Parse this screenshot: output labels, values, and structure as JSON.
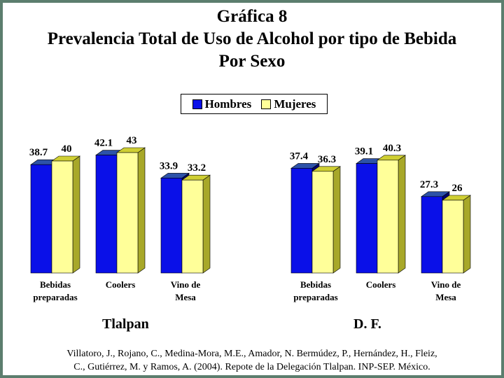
{
  "title": {
    "line1": "Gráfica 8",
    "line2": "Prevalencia Total de Uso de Alcohol por tipo de Bebida",
    "line3": "Por Sexo"
  },
  "legend": {
    "hombres": "Hombres",
    "mujeres": "Mujeres"
  },
  "colors": {
    "hombres_front": "#0a10e8",
    "hombres_top": "#2d52a8",
    "hombres_side": "#00006a",
    "mujeres_front": "#ffff99",
    "mujeres_top": "#cfcf33",
    "mujeres_side": "#a8a829",
    "frame": "#5c7e6e"
  },
  "chart_data": [
    {
      "type": "bar",
      "panel_label": "Tlalpan",
      "categories": [
        [
          "Bebidas",
          "preparadas"
        ],
        [
          "Coolers"
        ],
        [
          "Vino de",
          "Mesa"
        ]
      ],
      "series": [
        {
          "name": "Hombres",
          "values": [
            38.7,
            42.1,
            33.9
          ],
          "labels": [
            "38.7",
            "42.1",
            "33.9"
          ]
        },
        {
          "name": "Mujeres",
          "values": [
            40,
            43,
            33.2
          ],
          "labels": [
            "40",
            "43",
            "33.2"
          ]
        }
      ],
      "ylim": [
        0,
        50
      ]
    },
    {
      "type": "bar",
      "panel_label": "D. F.",
      "categories": [
        [
          "Bebidas",
          "preparadas"
        ],
        [
          "Coolers"
        ],
        [
          "Vino de",
          "Mesa"
        ]
      ],
      "series": [
        {
          "name": "Hombres",
          "values": [
            37.4,
            39.1,
            27.3
          ],
          "labels": [
            "37.4",
            "39.1",
            "27.3"
          ]
        },
        {
          "name": "Mujeres",
          "values": [
            36.3,
            40.3,
            26
          ],
          "labels": [
            "36.3",
            "40.3",
            "26"
          ]
        }
      ],
      "ylim": [
        0,
        50
      ]
    }
  ],
  "source": {
    "line1": "Villatoro, J., Rojano, C., Medina-Mora, M.E., Amador, N. Bermúdez, P., Hernández, H., Fleiz,",
    "line2": "C., Gutiérrez, M. y Ramos, A. (2004). Repote de la Delegación Tlalpan. INP-SEP. México."
  }
}
